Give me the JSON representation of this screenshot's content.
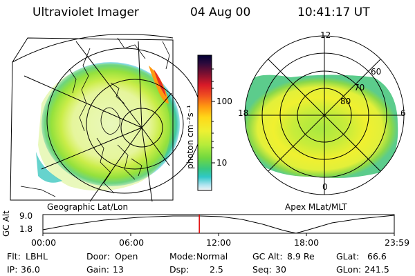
{
  "header": {
    "instrument": "Ultraviolet Imager",
    "date": "04 Aug 00",
    "time": "10:41:17 UT"
  },
  "colorbar": {
    "unit_label": "photon cm⁻²s⁻¹",
    "ticks": [
      "100",
      "10"
    ],
    "colors": [
      "#000033",
      "#3b0a3b",
      "#80102a",
      "#c0102a",
      "#e83020",
      "#ff8c10",
      "#ffd010",
      "#f0f030",
      "#b8ec3a",
      "#7ddc3c",
      "#3cc878",
      "#28c8c8",
      "#a0e0f0",
      "#f0f0f0"
    ]
  },
  "left_map": {
    "caption": "Geographic Lat/Lon"
  },
  "right_map": {
    "caption": "Apex MLat/MLT",
    "mlt_labels": {
      "top": "12",
      "left": "18",
      "right": "6",
      "bottom": "0"
    },
    "lat_labels": [
      "60",
      "70",
      "80"
    ]
  },
  "altitude_plot": {
    "ylabel": "GC Alt",
    "yticks": [
      "9.0",
      "1.8"
    ],
    "xticks": [
      "00:00",
      "06:00",
      "12:00",
      "18:00",
      "23:59"
    ],
    "current_time_fraction": 0.4452
  },
  "info": {
    "filter_label": "Flt:",
    "filter_value": "LBHL",
    "door_label": "Door:",
    "door_value": "Open",
    "mode_label": "Mode:",
    "mode_value": "Normal",
    "gcalt_label": "GC Alt:",
    "gcalt_value": "8.9 Re",
    "glat_label": "GLat:",
    "glat_value": "66.6",
    "ip_label": "IP:",
    "ip_value": "36.0",
    "gain_label": "Gain:",
    "gain_value": "13",
    "dsp_label": "Dsp:",
    "dsp_value": "2.5",
    "seq_label": "Seq:",
    "seq_value": "30",
    "glon_label": "GLon:",
    "glon_value": "241.5"
  }
}
